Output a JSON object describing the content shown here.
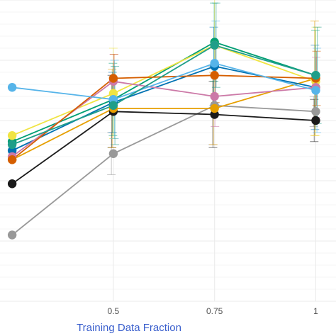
{
  "chart_data": {
    "type": "line",
    "title": "",
    "xlabel": "Training Data Fraction",
    "ylabel": "",
    "xlabel_color": "#3a5fcd",
    "x": [
      0.25,
      0.5,
      0.75,
      1
    ],
    "x_tick_labels": [
      "0.5",
      "0.75",
      "1"
    ],
    "x_tick_values": [
      0.5,
      0.75,
      1
    ],
    "xlim": [
      0.22,
      1.05
    ],
    "ylim": [
      0,
      100
    ],
    "grid": true,
    "legend": "none",
    "series": [
      {
        "color": "#999999",
        "values": [
          22,
          49,
          65,
          63
        ],
        "err": [
          null,
          7,
          13,
          5
        ]
      },
      {
        "color": "#1a1a1a",
        "values": [
          39,
          63,
          62,
          60
        ],
        "err": [
          null,
          12,
          11,
          7
        ]
      },
      {
        "color": "#e69f00",
        "values": [
          47,
          64,
          64,
          74
        ],
        "err": [
          null,
          13,
          12,
          19
        ]
      },
      {
        "color": "#0072b2",
        "values": [
          50,
          66,
          78,
          71
        ],
        "err": [
          null,
          10,
          13,
          14
        ]
      },
      {
        "color": "#009e73",
        "values": [
          53,
          67,
          86,
          75
        ],
        "err": [
          null,
          12,
          13,
          15
        ]
      },
      {
        "color": "#f0e442",
        "values": [
          55,
          69,
          85,
          73
        ],
        "err": [
          null,
          15,
          16,
          18
        ]
      },
      {
        "color": "#cc79a7",
        "values": [
          48,
          73,
          68,
          71
        ],
        "err": [
          null,
          9,
          10,
          10
        ]
      },
      {
        "color": "#d55e00",
        "values": [
          47,
          74,
          75,
          74
        ],
        "err": [
          null,
          8,
          9,
          9
        ]
      },
      {
        "color": "#56b4e9",
        "values": [
          71,
          67,
          79,
          70
        ],
        "err": [
          null,
          13,
          14,
          14
        ]
      },
      {
        "color": "#1f9e89",
        "values": [
          52,
          65,
          85,
          75
        ],
        "err": [
          null,
          13,
          14,
          16
        ]
      }
    ]
  }
}
